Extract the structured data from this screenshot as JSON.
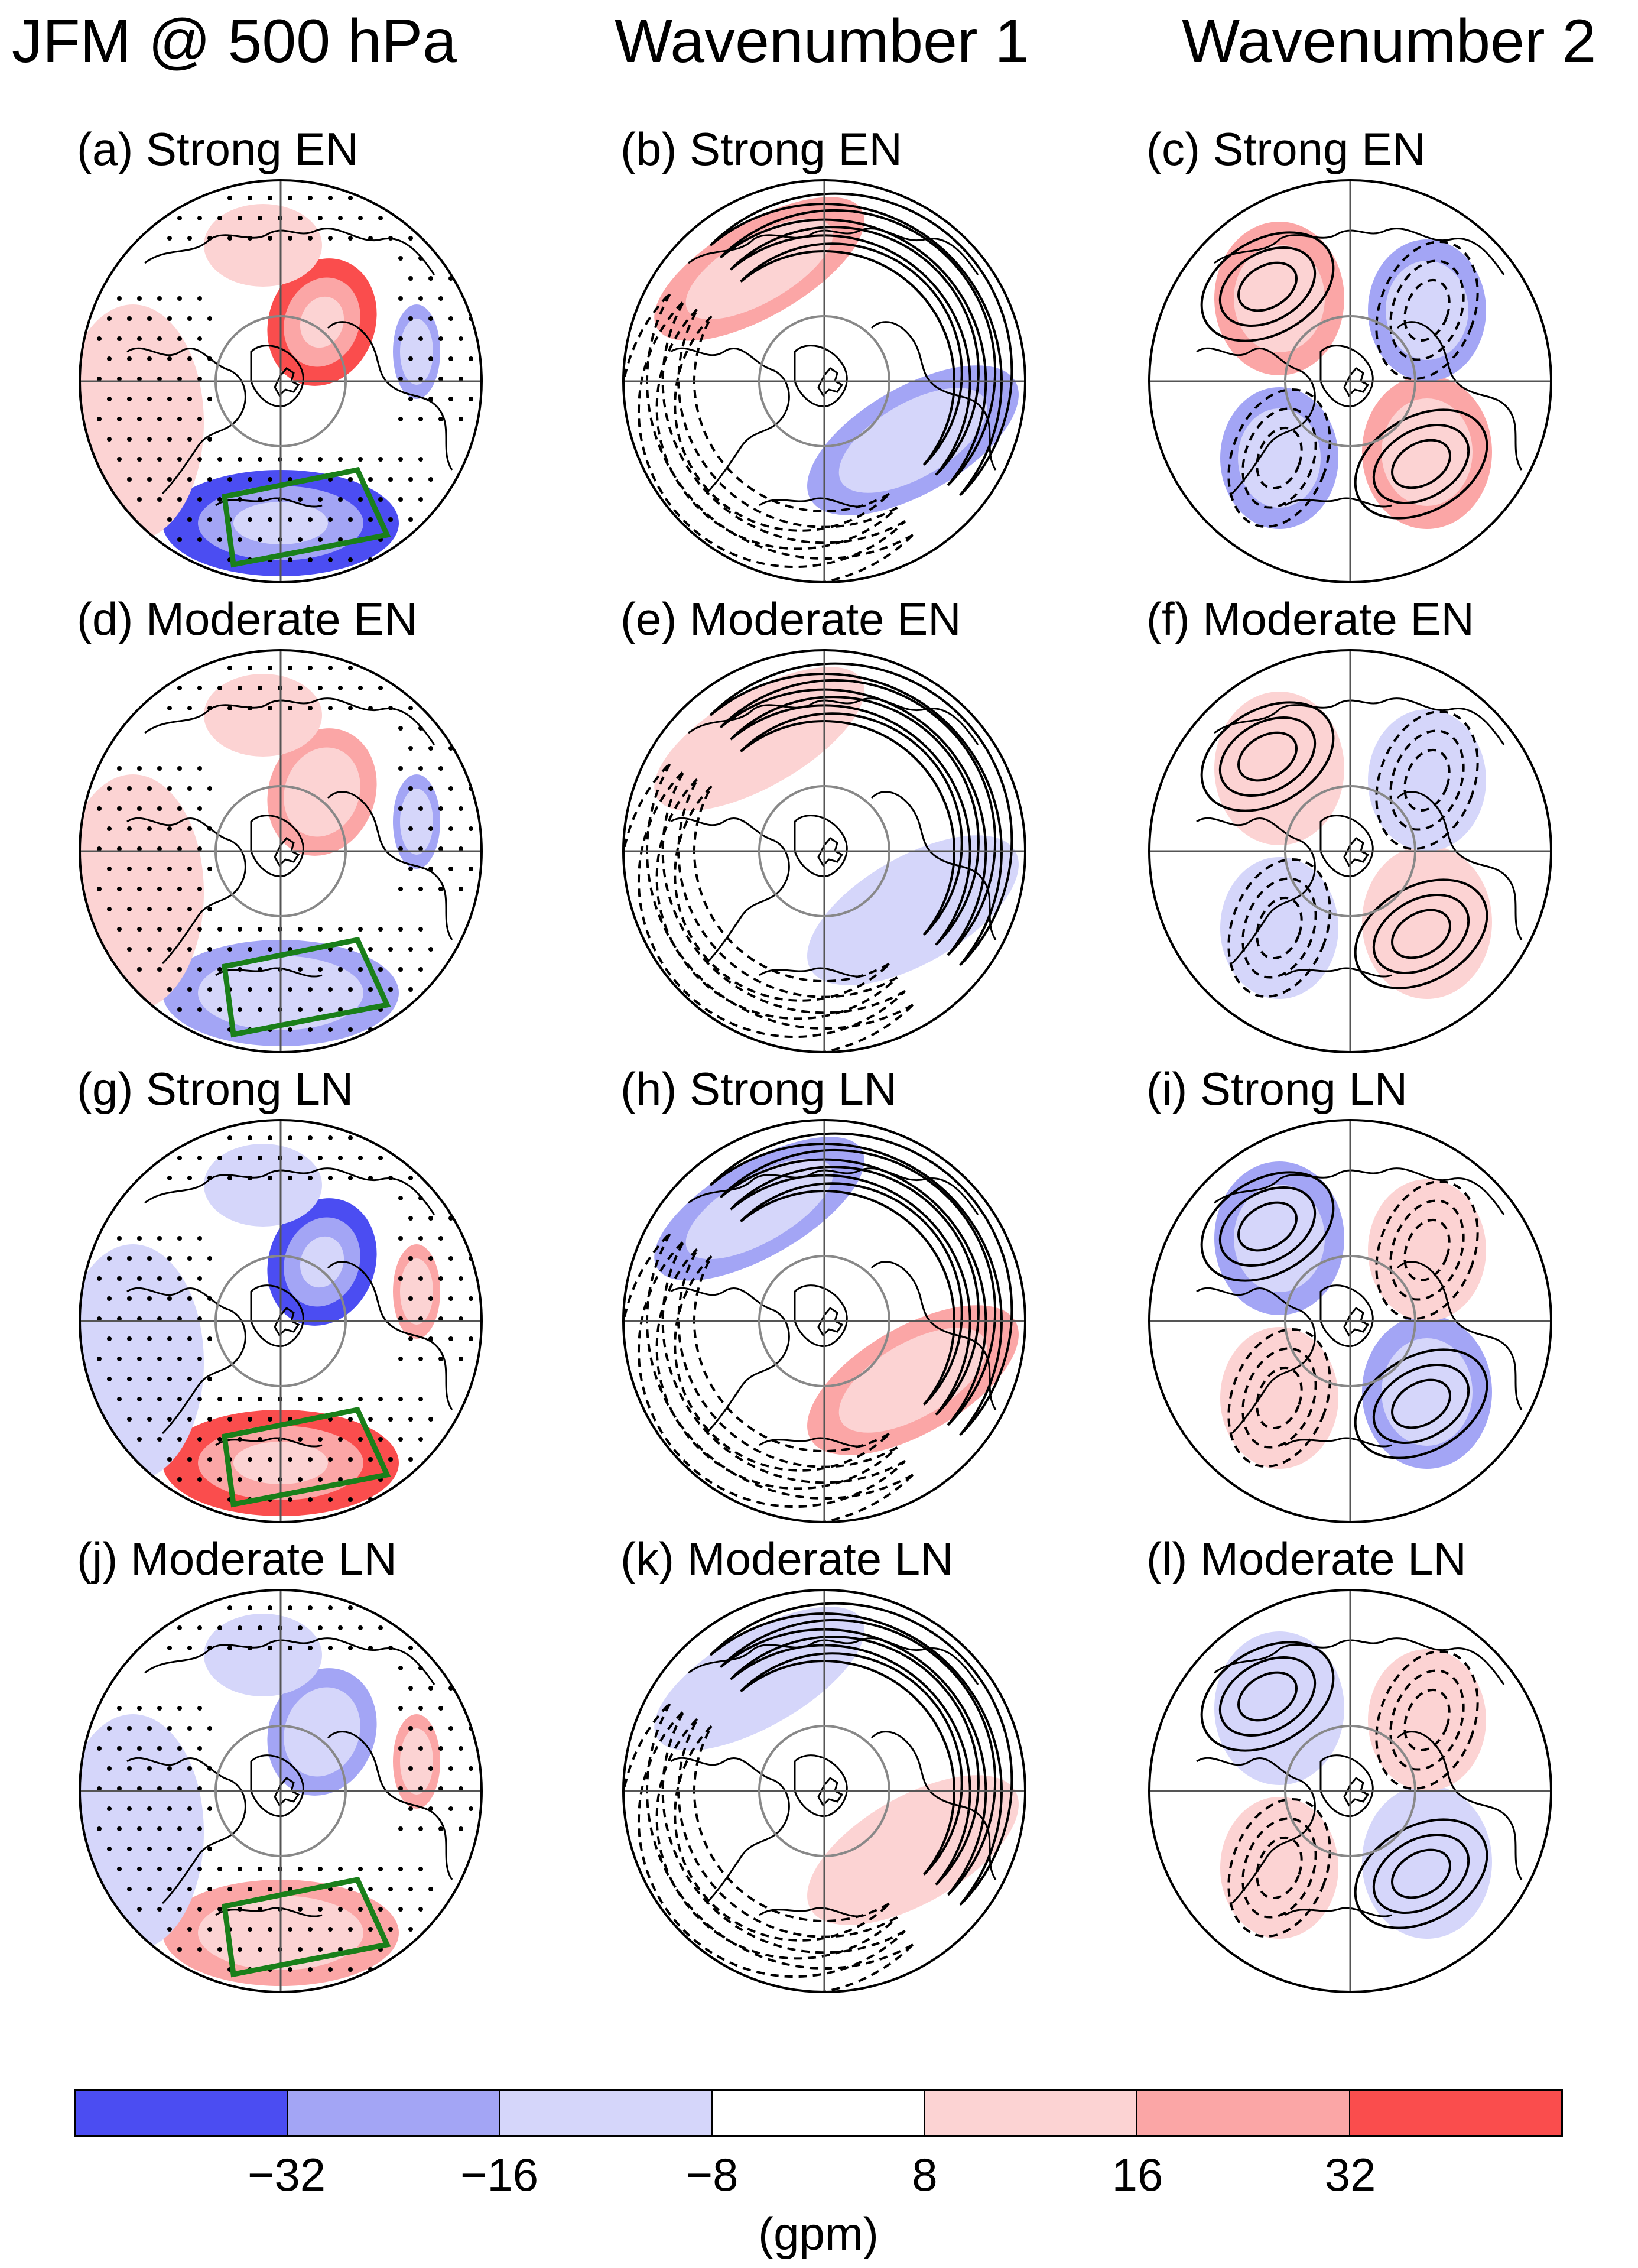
{
  "column_titles": [
    "JFM @ 500 hPa",
    "Wavenumber 1",
    "Wavenumber 2"
  ],
  "panels": [
    {
      "label": "(a) Strong EN",
      "field": "total",
      "sign": -1,
      "strength": 1.0,
      "region_box": true,
      "stippling": true
    },
    {
      "label": "(b) Strong EN",
      "field": "wave1",
      "sign": 1,
      "strength": 1.0,
      "region_box": false,
      "stippling": false
    },
    {
      "label": "(c) Strong EN",
      "field": "wave2",
      "sign": -1,
      "strength": 1.0,
      "region_box": false,
      "stippling": false
    },
    {
      "label": "(d) Moderate EN",
      "field": "total",
      "sign": -1,
      "strength": 0.7,
      "region_box": true,
      "stippling": true
    },
    {
      "label": "(e) Moderate EN",
      "field": "wave1",
      "sign": 1,
      "strength": 0.6,
      "region_box": false,
      "stippling": false
    },
    {
      "label": "(f) Moderate EN",
      "field": "wave2",
      "sign": -1,
      "strength": 0.5,
      "region_box": false,
      "stippling": false
    },
    {
      "label": "(g) Strong LN",
      "field": "total",
      "sign": 1,
      "strength": 1.0,
      "region_box": true,
      "stippling": true
    },
    {
      "label": "(h) Strong LN",
      "field": "wave1",
      "sign": -1,
      "strength": 0.9,
      "region_box": false,
      "stippling": false
    },
    {
      "label": "(i) Strong LN",
      "field": "wave2",
      "sign": 1,
      "strength": 0.8,
      "region_box": false,
      "stippling": false
    },
    {
      "label": "(j) Moderate LN",
      "field": "total",
      "sign": 1,
      "strength": 0.8,
      "region_box": true,
      "stippling": true
    },
    {
      "label": "(k) Moderate LN",
      "field": "wave1",
      "sign": -1,
      "strength": 0.7,
      "region_box": false,
      "stippling": false
    },
    {
      "label": "(l) Moderate LN",
      "field": "wave2",
      "sign": 1,
      "strength": 0.6,
      "region_box": false,
      "stippling": false
    }
  ],
  "colorbar": {
    "colors": [
      "#4b4df2",
      "#a3a5f5",
      "#d5d6fa",
      "#ffffff",
      "#fcd3d3",
      "#fba6a6",
      "#fa4d4d"
    ],
    "tick_labels": [
      "−32",
      "−16",
      "−8",
      "8",
      "16",
      "32"
    ],
    "unit": "(gpm)"
  },
  "colors": {
    "region_box": "#1a7f1a",
    "contour": "#000000",
    "lat_circle": "#888888"
  }
}
